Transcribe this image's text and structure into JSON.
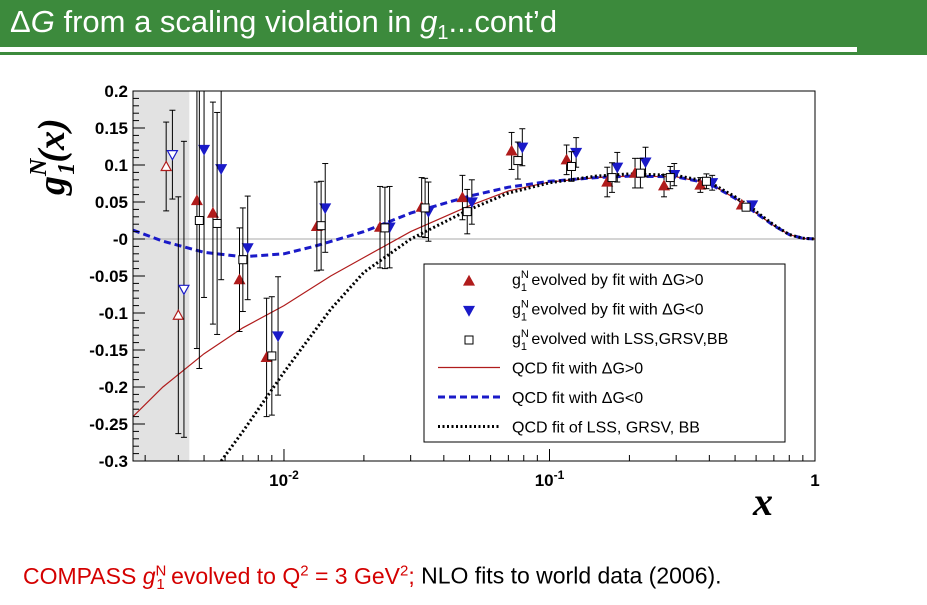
{
  "header": {
    "title_symbol": "Δ",
    "title_G": "G",
    "title_mid": " from a scaling violation in ",
    "title_g": "g",
    "title_sub": "1",
    "title_end": "...cont’d"
  },
  "caption": {
    "red_prefix": "COMPASS ",
    "red_g": "g",
    "red_sup": "N",
    "red_sub": "1",
    "red_mid": " evolved to Q",
    "red_q_sup": "2",
    "red_eq": " = 3 GeV",
    "red_gev_sup": "2",
    "red_end": ";",
    "black_text": " NLO fits to world data (2006)."
  },
  "chart_data": {
    "type": "scatter",
    "title": "",
    "xlabel": "x",
    "ylabel": "g1N(x)",
    "ylabel_main": "g",
    "ylabel_sup": "N",
    "ylabel_sub": "1",
    "ylabel_arg": "(x)",
    "x_scale": "log",
    "xlim": [
      0.0027,
      1.0
    ],
    "ylim": [
      -0.3,
      0.2
    ],
    "x_tick_labels": [
      {
        "x": 0.01,
        "base": "10",
        "exp": "-2"
      },
      {
        "x": 0.1,
        "base": "10",
        "exp": "-1"
      },
      {
        "x": 1,
        "base": "1",
        "exp": ""
      }
    ],
    "y_ticks": [
      0.2,
      0.15,
      0.1,
      0.05,
      0,
      -0.05,
      -0.1,
      -0.15,
      -0.2,
      -0.25,
      -0.3
    ],
    "y_tick_labels": [
      "0.2",
      "0.15",
      "0.1",
      "0.05",
      "-0",
      "-0.05",
      "-0.1",
      "-0.15",
      "-0.2",
      "-0.25",
      "-0.3"
    ],
    "shaded_region_x": [
      0.0027,
      0.0044
    ],
    "colors": {
      "red": "#b01c1c",
      "blue": "#1a1ac8",
      "black": "#000000",
      "shade": "#e2e2e2"
    },
    "legend_position": "bottom-right",
    "legend": [
      {
        "text": "g",
        "sup": "N",
        "sub": "1",
        "rest": " evolved by fit with ΔG>0",
        "marker": "tri-up-red"
      },
      {
        "text": "g",
        "sup": "N",
        "sub": "1",
        "rest": " evolved by fit with ΔG<0",
        "marker": "tri-down-blue"
      },
      {
        "text": "g",
        "sup": "N",
        "sub": "1",
        "rest": " evolved with LSS,GRSV,BB",
        "marker": "square-open"
      },
      {
        "text": "QCD fit with ΔG>0",
        "sup": "",
        "sub": "",
        "rest": "",
        "marker": "line-red"
      },
      {
        "text": "QCD fit with ΔG<0",
        "sup": "",
        "sub": "",
        "rest": "",
        "marker": "line-blue-dashed"
      },
      {
        "text": "QCD fit of LSS, GRSV, BB",
        "sup": "",
        "sub": "",
        "rest": "",
        "marker": "line-black-dotted"
      }
    ],
    "series": [
      {
        "marker": "tri-up-red",
        "points": [
          {
            "x": 0.0036,
            "y": 0.098,
            "err": 0.06,
            "open": true
          },
          {
            "x": 0.004,
            "y": -0.103,
            "err": 0.16,
            "open": true
          },
          {
            "x": 0.0047,
            "y": 0.052,
            "err": 0.2
          },
          {
            "x": 0.0054,
            "y": 0.035,
            "err": 0.15
          },
          {
            "x": 0.0068,
            "y": -0.055,
            "err": 0.07
          },
          {
            "x": 0.0086,
            "y": -0.16,
            "err": 0.08
          },
          {
            "x": 0.0133,
            "y": 0.017,
            "err": 0.06
          },
          {
            "x": 0.023,
            "y": 0.016,
            "err": 0.055
          },
          {
            "x": 0.033,
            "y": 0.043,
            "err": 0.04
          },
          {
            "x": 0.047,
            "y": 0.056,
            "err": 0.03
          },
          {
            "x": 0.072,
            "y": 0.119,
            "err": 0.025
          },
          {
            "x": 0.116,
            "y": 0.107,
            "err": 0.02
          },
          {
            "x": 0.165,
            "y": 0.077,
            "err": 0.02
          },
          {
            "x": 0.21,
            "y": 0.089,
            "err": 0.02
          },
          {
            "x": 0.27,
            "y": 0.072,
            "err": 0.015
          },
          {
            "x": 0.37,
            "y": 0.073,
            "err": 0.01
          },
          {
            "x": 0.53,
            "y": 0.046,
            "err": 0.005
          }
        ]
      },
      {
        "marker": "tri-down-blue",
        "points": [
          {
            "x": 0.0038,
            "y": 0.114,
            "err": 0.06,
            "open": true
          },
          {
            "x": 0.0042,
            "y": -0.068,
            "err": 0.2,
            "open": true
          },
          {
            "x": 0.005,
            "y": 0.121,
            "err": 0.2
          },
          {
            "x": 0.0058,
            "y": 0.095,
            "err": 0.15
          },
          {
            "x": 0.0073,
            "y": -0.012,
            "err": 0.07
          },
          {
            "x": 0.0095,
            "y": -0.131,
            "err": 0.08
          },
          {
            "x": 0.0143,
            "y": 0.042,
            "err": 0.06
          },
          {
            "x": 0.025,
            "y": 0.016,
            "err": 0.055
          },
          {
            "x": 0.035,
            "y": 0.037,
            "err": 0.04
          },
          {
            "x": 0.051,
            "y": 0.05,
            "err": 0.03
          },
          {
            "x": 0.079,
            "y": 0.124,
            "err": 0.025
          },
          {
            "x": 0.126,
            "y": 0.117,
            "err": 0.02
          },
          {
            "x": 0.18,
            "y": 0.097,
            "err": 0.02
          },
          {
            "x": 0.23,
            "y": 0.104,
            "err": 0.02
          },
          {
            "x": 0.295,
            "y": 0.087,
            "err": 0.015
          },
          {
            "x": 0.41,
            "y": 0.076,
            "err": 0.01
          },
          {
            "x": 0.58,
            "y": 0.046,
            "err": 0.005
          }
        ]
      },
      {
        "marker": "square-open",
        "points": [
          {
            "x": 0.0048,
            "y": 0.025,
            "err": 0.2
          },
          {
            "x": 0.0056,
            "y": 0.021,
            "err": 0.15
          },
          {
            "x": 0.007,
            "y": -0.028,
            "err": 0.07
          },
          {
            "x": 0.009,
            "y": -0.158,
            "err": 0.08
          },
          {
            "x": 0.0138,
            "y": 0.018,
            "err": 0.06
          },
          {
            "x": 0.024,
            "y": 0.015,
            "err": 0.055
          },
          {
            "x": 0.034,
            "y": 0.042,
            "err": 0.04
          },
          {
            "x": 0.049,
            "y": 0.037,
            "err": 0.03
          },
          {
            "x": 0.076,
            "y": 0.106,
            "err": 0.025
          },
          {
            "x": 0.121,
            "y": 0.098,
            "err": 0.02
          },
          {
            "x": 0.172,
            "y": 0.083,
            "err": 0.02
          },
          {
            "x": 0.22,
            "y": 0.089,
            "err": 0.02
          },
          {
            "x": 0.285,
            "y": 0.083,
            "err": 0.015
          },
          {
            "x": 0.39,
            "y": 0.078,
            "err": 0.01
          },
          {
            "x": 0.55,
            "y": 0.043,
            "err": 0.005
          }
        ]
      }
    ],
    "curves": [
      {
        "style": "line-red",
        "x": [
          0.0027,
          0.0035,
          0.005,
          0.007,
          0.01,
          0.015,
          0.02,
          0.03,
          0.05,
          0.07,
          0.1,
          0.15,
          0.2,
          0.3,
          0.4,
          0.5,
          0.6,
          0.7,
          0.8,
          0.9,
          1.0
        ],
        "y": [
          -0.24,
          -0.2,
          -0.155,
          -0.12,
          -0.09,
          -0.05,
          -0.025,
          0.01,
          0.045,
          0.065,
          0.077,
          0.083,
          0.085,
          0.084,
          0.075,
          0.055,
          0.035,
          0.018,
          0.006,
          0.001,
          0.0
        ]
      },
      {
        "style": "line-blue-dashed",
        "x": [
          0.0027,
          0.0035,
          0.005,
          0.007,
          0.01,
          0.013,
          0.02,
          0.03,
          0.05,
          0.07,
          0.1,
          0.15,
          0.2,
          0.3,
          0.4,
          0.5,
          0.6,
          0.7,
          0.8,
          0.9,
          1.0
        ],
        "y": [
          0.012,
          -0.003,
          -0.018,
          -0.024,
          -0.02,
          -0.01,
          0.01,
          0.035,
          0.058,
          0.07,
          0.078,
          0.083,
          0.085,
          0.084,
          0.075,
          0.055,
          0.035,
          0.018,
          0.006,
          0.001,
          0.0
        ]
      },
      {
        "style": "line-black-dotted",
        "x": [
          0.0058,
          0.007,
          0.01,
          0.015,
          0.02,
          0.03,
          0.05,
          0.07,
          0.1,
          0.15,
          0.2,
          0.3,
          0.4,
          0.5,
          0.6,
          0.7,
          0.8,
          0.9,
          1.0
        ],
        "y": [
          -0.3,
          -0.26,
          -0.18,
          -0.095,
          -0.045,
          0.0,
          0.04,
          0.062,
          0.076,
          0.085,
          0.088,
          0.086,
          0.077,
          0.057,
          0.037,
          0.019,
          0.006,
          0.001,
          0.0
        ]
      }
    ]
  }
}
